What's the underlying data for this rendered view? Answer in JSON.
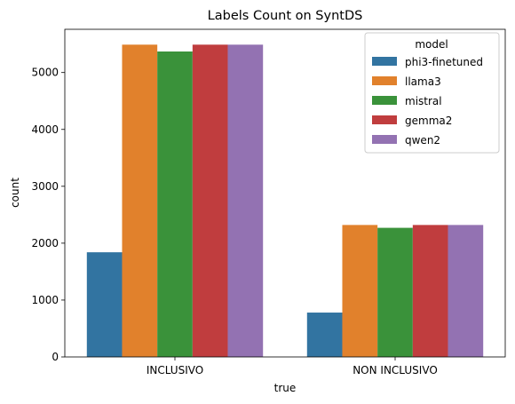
{
  "chart_data": {
    "type": "bar",
    "title": "Labels Count on SyntDS",
    "xlabel": "true",
    "ylabel": "count",
    "categories": [
      "INCLUSIVO",
      "NON INCLUSIVO"
    ],
    "series": [
      {
        "name": "phi3-finetuned",
        "values": [
          1840,
          780
        ],
        "color": "#3274a1"
      },
      {
        "name": "llama3",
        "values": [
          5490,
          2320
        ],
        "color": "#e1812c"
      },
      {
        "name": "mistral",
        "values": [
          5370,
          2270
        ],
        "color": "#3a923a"
      },
      {
        "name": "gemma2",
        "values": [
          5490,
          2320
        ],
        "color": "#c03d3e"
      },
      {
        "name": "qwen2",
        "values": [
          5490,
          2320
        ],
        "color": "#9372b2"
      }
    ],
    "ylim": [
      0,
      5760
    ],
    "yticks": [
      0,
      1000,
      2000,
      3000,
      4000,
      5000
    ],
    "legend": {
      "title": "model",
      "position": "top-right"
    },
    "grid": false
  }
}
